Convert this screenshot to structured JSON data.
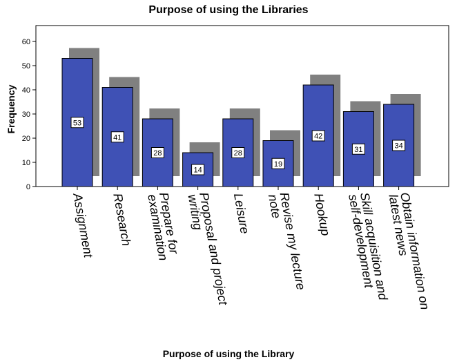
{
  "chart_data": {
    "type": "bar",
    "title": "Purpose of using the Libraries",
    "xlabel": "Purpose of using the Library",
    "ylabel": "Frequency",
    "ylim": [
      0,
      65
    ],
    "yticks": [
      0,
      10,
      20,
      30,
      40,
      50,
      60
    ],
    "grid": false,
    "legend": "none",
    "style": "3d-shadow",
    "colors": {
      "bar": "#3f51b5",
      "bar_edge": "#000000",
      "shadow": "#808080",
      "label_bg": "#ffffff"
    },
    "categories": [
      "Assignment",
      "Research",
      "Prepare for examination",
      "Proposal and project writing",
      "Leisure",
      "Revise my lecture note",
      "Hookup",
      "Skill acquisition and self-development",
      "Obtain information on latest news"
    ],
    "category_lines": [
      [
        "Assignment"
      ],
      [
        "Research"
      ],
      [
        "Prepare for",
        "examination"
      ],
      [
        "Proposal and project",
        "writing"
      ],
      [
        "Leisure"
      ],
      [
        "Revise my lecture",
        "note"
      ],
      [
        "Hookup"
      ],
      [
        "Skill acquisition and",
        "self-development"
      ],
      [
        "Obtain information on",
        "latest news"
      ]
    ],
    "values": [
      53,
      41,
      28,
      14,
      28,
      19,
      42,
      31,
      34
    ]
  }
}
